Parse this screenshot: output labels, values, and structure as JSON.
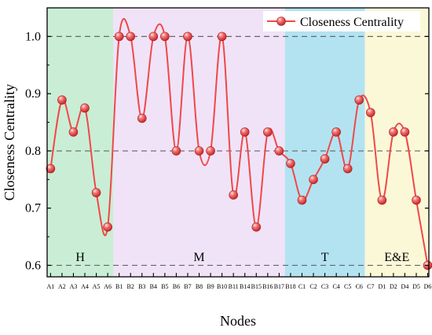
{
  "chart_data": {
    "type": "line",
    "xlabel": "Nodes",
    "ylabel": "Closeness Centrality",
    "ylim": [
      0.58,
      1.05
    ],
    "yticks": [
      "0.6",
      "0.7",
      "0.8",
      "0.9",
      "1.0"
    ],
    "grid": "horizontal dashed at 0.6, 0.8, 1.0",
    "legend": "top-right",
    "categories": [
      "A1",
      "A2",
      "A3",
      "A4",
      "A5",
      "A6",
      "B1",
      "B2",
      "B3",
      "B4",
      "B5",
      "B6",
      "B7",
      "B8",
      "B9",
      "B10",
      "B11",
      "B14",
      "B15",
      "B16",
      "B17",
      "B18",
      "C1",
      "C2",
      "C3",
      "C4",
      "C5",
      "C6",
      "C7",
      "D1",
      "D2",
      "D4",
      "D5",
      "D6"
    ],
    "series": [
      {
        "name": "Closeness Centrality",
        "color": "#f04848",
        "values": [
          0.769,
          0.889,
          0.833,
          0.875,
          0.727,
          0.667,
          1.0,
          1.0,
          0.857,
          1.0,
          1.0,
          0.8,
          1.0,
          0.8,
          0.8,
          1.0,
          0.723,
          0.833,
          0.667,
          0.833,
          0.8,
          0.778,
          0.714,
          0.75,
          0.786,
          0.833,
          0.769,
          0.889,
          0.867,
          0.714,
          0.833,
          0.833,
          0.714,
          0.6
        ]
      }
    ],
    "regions": [
      {
        "label": "H",
        "from": "A1",
        "to": "A6",
        "color": "#c9eed5"
      },
      {
        "label": "M",
        "from": "B1",
        "to": "B17",
        "color": "#f0e3f8"
      },
      {
        "label": "T",
        "from": "B18",
        "to": "C6",
        "color": "#b3e3f1"
      },
      {
        "label": "E&E",
        "from": "C7",
        "to": "D6",
        "color": "#fbf8d8"
      }
    ]
  }
}
